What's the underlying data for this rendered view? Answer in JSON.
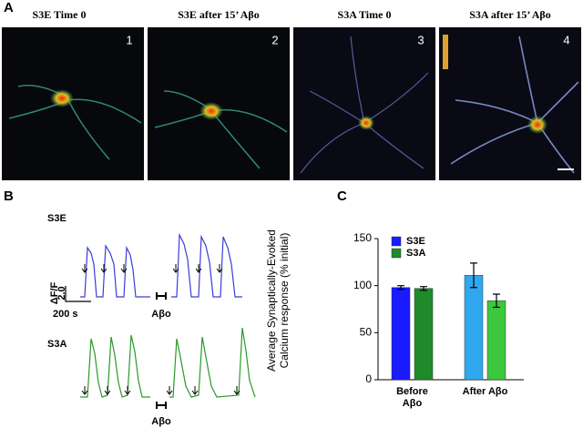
{
  "panel_a": {
    "label": "A",
    "images": [
      {
        "title": "S3E Time 0",
        "number": "1"
      },
      {
        "title": "S3E after 15’ Aβo",
        "number": "2"
      },
      {
        "title": "S3A Time 0",
        "number": "3"
      },
      {
        "title": "S3A after 15’ Aβo",
        "number": "4"
      }
    ]
  },
  "panel_b": {
    "label": "B",
    "s3e_label": "S3E",
    "s3a_label": "S3A",
    "scale_y_label": "ΔF/F",
    "scale_y_value": "2.0",
    "scale_x_label": "200 s",
    "treatment_top": "Aβo",
    "treatment_bottom": "Aβo"
  },
  "chart_data": {
    "type": "bar",
    "label": "C",
    "ylabel": [
      "Average Synaptically-Evoked",
      "Calcium response (% initial)"
    ],
    "categories": [
      "Before Aβo",
      "After Aβo"
    ],
    "series": [
      {
        "name": "S3E",
        "color": "#1a1aff",
        "colors": [
          "#1a1aff",
          "#30a8f0"
        ],
        "values": [
          98,
          111
        ],
        "errors": [
          2,
          13
        ]
      },
      {
        "name": "S3A",
        "color": "#1f8a2a",
        "colors": [
          "#1f8a2a",
          "#3cc83c"
        ],
        "values": [
          97,
          84
        ],
        "errors": [
          2,
          7
        ]
      }
    ],
    "ylim": [
      0,
      150
    ],
    "yticks": [
      0,
      50,
      100,
      150
    ]
  }
}
